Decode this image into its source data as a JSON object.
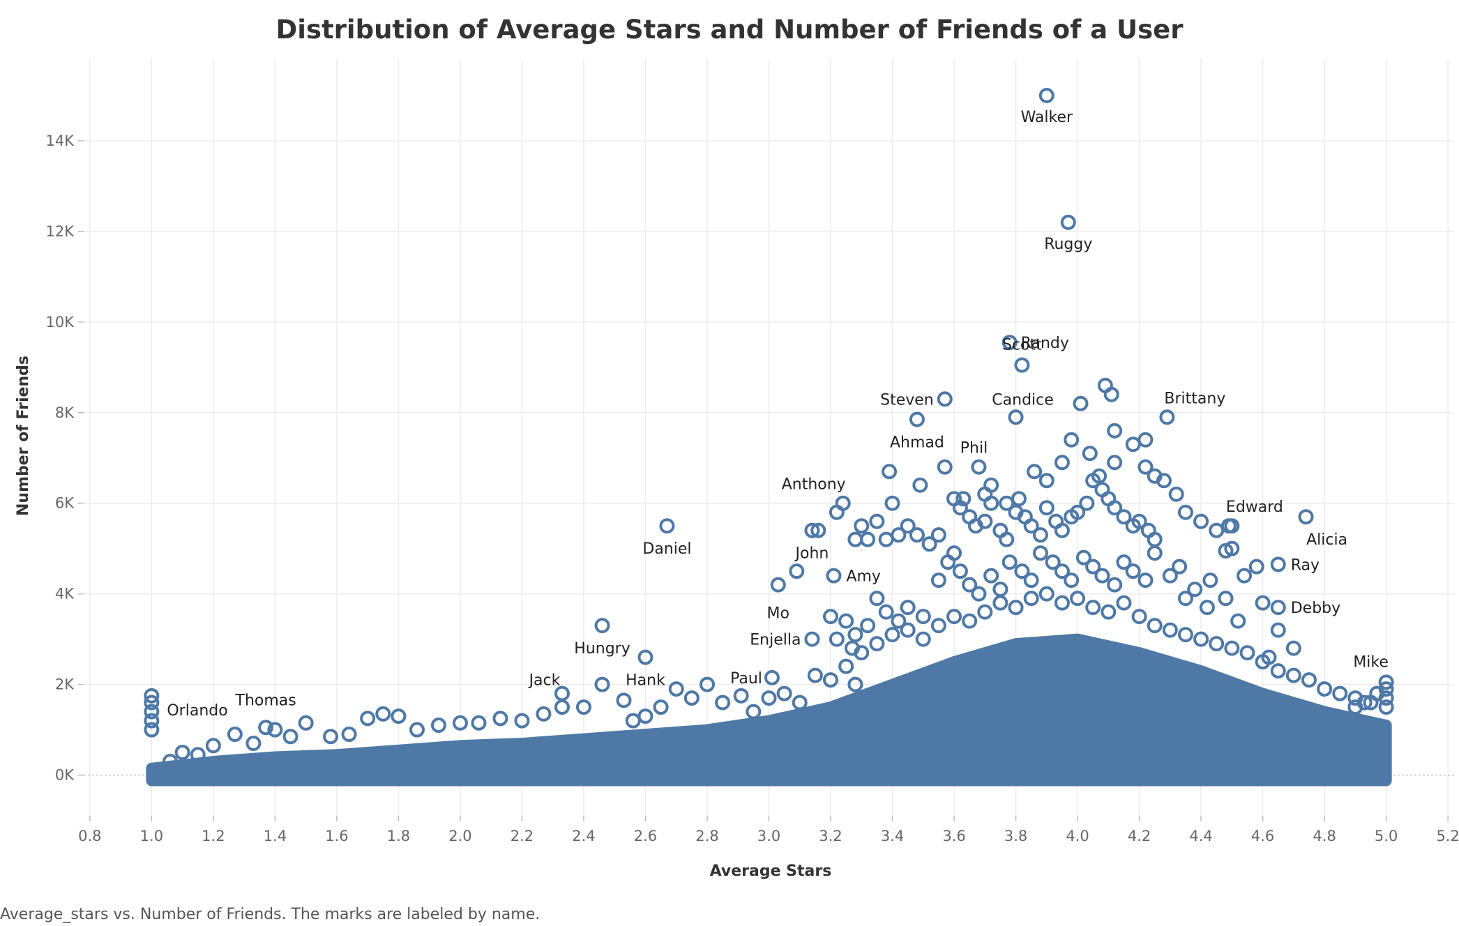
{
  "chart_data": {
    "type": "scatter",
    "title": "Distribution of Average Stars and Number of Friends of a User",
    "xlabel": "Average Stars",
    "ylabel": "Number of Friends",
    "caption": "Average_stars vs. Number of Friends.  The marks are labeled by name.",
    "xlim": [
      0.78,
      5.22
    ],
    "ylim": [
      -900,
      15800
    ],
    "x_ticks": [
      0.8,
      1.0,
      1.2,
      1.4,
      1.6,
      1.8,
      2.0,
      2.2,
      2.4,
      2.6,
      2.8,
      3.0,
      3.2,
      3.4,
      3.6,
      3.8,
      4.0,
      4.2,
      4.4,
      4.6,
      4.8,
      5.0,
      5.2
    ],
    "x_tick_labels": [
      "0.8",
      "1.0",
      "1.2",
      "1.4",
      "1.6",
      "1.8",
      "2.0",
      "2.2",
      "2.4",
      "2.6",
      "2.8",
      "3.0",
      "3.2",
      "3.4",
      "3.6",
      "3.8",
      "4.0",
      "4.2",
      "4.4",
      "4.6",
      "4.8",
      "5.0",
      "5.2"
    ],
    "y_ticks": [
      0,
      2000,
      4000,
      6000,
      8000,
      10000,
      12000,
      14000
    ],
    "y_tick_labels": [
      "0K",
      "2K",
      "4K",
      "6K",
      "8K",
      "10K",
      "12K",
      "14K"
    ],
    "grid": true,
    "mark_color": "#4e79a7",
    "labeled_points": [
      {
        "name": "Walker",
        "x": 3.9,
        "y": 15000
      },
      {
        "name": "Ruggy",
        "x": 3.97,
        "y": 12200
      },
      {
        "name": "Randy",
        "x": 3.78,
        "y": 9550
      },
      {
        "name": "Scott",
        "x": 3.82,
        "y": 9050
      },
      {
        "name": "Steven",
        "x": 3.57,
        "y": 8300
      },
      {
        "name": "Candice",
        "x": 3.8,
        "y": 7900
      },
      {
        "name": "Ahmad",
        "x": 3.48,
        "y": 7850
      },
      {
        "name": "Phil",
        "x": 3.57,
        "y": 6800
      },
      {
        "name": "Brittany",
        "x": 4.29,
        "y": 7900
      },
      {
        "name": "Anthony",
        "x": 3.24,
        "y": 6000
      },
      {
        "name": "Edward",
        "x": 4.49,
        "y": 5500
      },
      {
        "name": "Daniel",
        "x": 2.67,
        "y": 5500
      },
      {
        "name": "Alicia",
        "x": 4.74,
        "y": 5700
      },
      {
        "name": "John",
        "x": 3.14,
        "y": 5400
      },
      {
        "name": "Ray",
        "x": 4.65,
        "y": 4650
      },
      {
        "name": "Amy",
        "x": 3.21,
        "y": 4400
      },
      {
        "name": "Mo",
        "x": 3.03,
        "y": 4200
      },
      {
        "name": "Debby",
        "x": 4.65,
        "y": 3700
      },
      {
        "name": "Hungry",
        "x": 2.46,
        "y": 3300
      },
      {
        "name": "Enjella",
        "x": 3.14,
        "y": 3000
      },
      {
        "name": "Hank",
        "x": 2.6,
        "y": 2600
      },
      {
        "name": "Paul",
        "x": 3.01,
        "y": 2150
      },
      {
        "name": "Mike",
        "x": 5.0,
        "y": 2050
      },
      {
        "name": "Jack",
        "x": 2.33,
        "y": 1800
      },
      {
        "name": "Thomas",
        "x": 1.37,
        "y": 1050
      },
      {
        "name": "Orlando",
        "x": 1.0,
        "y": 1750
      }
    ],
    "scattered_points": [
      [
        3.6,
        6100
      ],
      [
        3.62,
        5900
      ],
      [
        3.65,
        5700
      ],
      [
        3.67,
        5500
      ],
      [
        3.7,
        5600
      ],
      [
        3.72,
        6000
      ],
      [
        3.75,
        5400
      ],
      [
        3.77,
        5200
      ],
      [
        3.8,
        5800
      ],
      [
        3.83,
        5700
      ],
      [
        3.85,
        5500
      ],
      [
        3.88,
        5300
      ],
      [
        3.9,
        5900
      ],
      [
        3.93,
        5600
      ],
      [
        3.95,
        5400
      ],
      [
        3.98,
        5700
      ],
      [
        4.0,
        5800
      ],
      [
        4.03,
        6000
      ],
      [
        4.05,
        6500
      ],
      [
        4.08,
        6300
      ],
      [
        4.1,
        6100
      ],
      [
        4.12,
        5900
      ],
      [
        4.15,
        5700
      ],
      [
        4.18,
        5500
      ],
      [
        4.2,
        5600
      ],
      [
        4.23,
        5400
      ],
      [
        4.25,
        5200
      ],
      [
        3.55,
        5300
      ],
      [
        3.52,
        5100
      ],
      [
        3.48,
        5300
      ],
      [
        3.45,
        5500
      ],
      [
        3.4,
        6000
      ],
      [
        3.42,
        5300
      ],
      [
        3.38,
        5200
      ],
      [
        3.35,
        5600
      ],
      [
        3.3,
        5500
      ],
      [
        3.28,
        5200
      ],
      [
        3.22,
        5800
      ],
      [
        3.16,
        5400
      ],
      [
        3.09,
        4500
      ],
      [
        3.32,
        5200
      ],
      [
        3.68,
        6800
      ],
      [
        3.72,
        6400
      ],
      [
        3.86,
        6700
      ],
      [
        3.9,
        6500
      ],
      [
        3.95,
        6900
      ],
      [
        3.98,
        7400
      ],
      [
        4.04,
        7100
      ],
      [
        4.07,
        6600
      ],
      [
        4.12,
        6900
      ],
      [
        4.18,
        7300
      ],
      [
        4.22,
        7400
      ],
      [
        4.25,
        6600
      ],
      [
        3.7,
        6200
      ],
      [
        3.77,
        6000
      ],
      [
        3.39,
        6700
      ],
      [
        3.49,
        6400
      ],
      [
        3.63,
        6100
      ],
      [
        3.81,
        6100
      ],
      [
        4.09,
        8600
      ],
      [
        4.11,
        8400
      ],
      [
        4.01,
        8200
      ],
      [
        4.12,
        7600
      ],
      [
        4.22,
        6800
      ],
      [
        4.28,
        6500
      ],
      [
        4.32,
        6200
      ],
      [
        4.35,
        5800
      ],
      [
        4.4,
        5600
      ],
      [
        4.45,
        5400
      ],
      [
        4.5,
        5500
      ],
      [
        4.48,
        4950
      ],
      [
        4.5,
        5000
      ],
      [
        4.58,
        4600
      ],
      [
        4.54,
        4400
      ],
      [
        4.43,
        4300
      ],
      [
        4.38,
        4100
      ],
      [
        4.35,
        3900
      ],
      [
        4.42,
        3700
      ],
      [
        4.48,
        3900
      ],
      [
        4.52,
        3400
      ],
      [
        4.6,
        3800
      ],
      [
        4.65,
        3200
      ],
      [
        4.7,
        2800
      ],
      [
        4.62,
        2600
      ],
      [
        3.6,
        4900
      ],
      [
        3.58,
        4700
      ],
      [
        3.62,
        4500
      ],
      [
        3.55,
        4300
      ],
      [
        3.65,
        4200
      ],
      [
        3.68,
        4000
      ],
      [
        3.72,
        4400
      ],
      [
        3.75,
        4100
      ],
      [
        3.78,
        4700
      ],
      [
        3.82,
        4500
      ],
      [
        3.85,
        4300
      ],
      [
        3.88,
        4900
      ],
      [
        3.92,
        4700
      ],
      [
        3.95,
        4500
      ],
      [
        3.98,
        4300
      ],
      [
        4.02,
        4800
      ],
      [
        4.05,
        4600
      ],
      [
        4.08,
        4400
      ],
      [
        4.12,
        4200
      ],
      [
        4.15,
        4700
      ],
      [
        4.18,
        4500
      ],
      [
        4.22,
        4300
      ],
      [
        4.25,
        4900
      ],
      [
        4.3,
        4400
      ],
      [
        4.33,
        4600
      ],
      [
        3.35,
        3900
      ],
      [
        3.38,
        3600
      ],
      [
        3.42,
        3400
      ],
      [
        3.45,
        3700
      ],
      [
        3.5,
        3500
      ],
      [
        3.32,
        3300
      ],
      [
        3.28,
        3100
      ],
      [
        3.25,
        3400
      ],
      [
        3.2,
        3500
      ],
      [
        3.22,
        3000
      ],
      [
        3.27,
        2800
      ],
      [
        3.3,
        2700
      ],
      [
        3.35,
        2900
      ],
      [
        3.4,
        3100
      ],
      [
        3.45,
        3200
      ],
      [
        3.5,
        3000
      ],
      [
        3.55,
        3300
      ],
      [
        3.6,
        3500
      ],
      [
        3.65,
        3400
      ],
      [
        3.7,
        3600
      ],
      [
        3.75,
        3800
      ],
      [
        3.8,
        3700
      ],
      [
        3.85,
        3900
      ],
      [
        3.9,
        4000
      ],
      [
        3.95,
        3800
      ],
      [
        4.0,
        3900
      ],
      [
        4.05,
        3700
      ],
      [
        4.1,
        3600
      ],
      [
        4.15,
        3800
      ],
      [
        4.2,
        3500
      ],
      [
        4.25,
        3300
      ],
      [
        4.3,
        3200
      ],
      [
        4.35,
        3100
      ],
      [
        4.4,
        3000
      ],
      [
        4.45,
        2900
      ],
      [
        4.5,
        2800
      ],
      [
        4.55,
        2700
      ],
      [
        4.6,
        2500
      ],
      [
        4.65,
        2300
      ],
      [
        4.7,
        2200
      ],
      [
        4.75,
        2100
      ],
      [
        4.8,
        1900
      ],
      [
        4.85,
        1800
      ],
      [
        4.9,
        1700
      ],
      [
        4.95,
        1600
      ],
      [
        2.46,
        2000
      ],
      [
        2.53,
        1650
      ],
      [
        2.4,
        1500
      ],
      [
        2.33,
        1500
      ],
      [
        2.27,
        1350
      ],
      [
        2.2,
        1200
      ],
      [
        2.13,
        1250
      ],
      [
        2.06,
        1150
      ],
      [
        2.0,
        1150
      ],
      [
        1.93,
        1100
      ],
      [
        1.86,
        1000
      ],
      [
        1.8,
        1300
      ],
      [
        1.75,
        1350
      ],
      [
        1.7,
        1250
      ],
      [
        1.64,
        900
      ],
      [
        1.58,
        850
      ],
      [
        1.5,
        1150
      ],
      [
        1.45,
        850
      ],
      [
        1.4,
        1000
      ],
      [
        1.33,
        700
      ],
      [
        1.27,
        900
      ],
      [
        1.2,
        650
      ],
      [
        1.15,
        450
      ],
      [
        1.1,
        500
      ],
      [
        1.06,
        300
      ],
      [
        2.7,
        1900
      ],
      [
        2.75,
        1700
      ],
      [
        2.8,
        2000
      ],
      [
        2.85,
        1600
      ],
      [
        2.91,
        1750
      ],
      [
        2.95,
        1400
      ],
      [
        3.0,
        1700
      ],
      [
        3.05,
        1800
      ],
      [
        3.1,
        1600
      ],
      [
        3.15,
        2200
      ],
      [
        3.2,
        2100
      ],
      [
        3.25,
        2400
      ],
      [
        3.28,
        2000
      ],
      [
        2.65,
        1500
      ],
      [
        2.6,
        1300
      ],
      [
        2.56,
        1200
      ],
      [
        1.0,
        1600
      ],
      [
        1.0,
        1400
      ],
      [
        1.0,
        1200
      ],
      [
        1.0,
        1000
      ],
      [
        5.0,
        1900
      ],
      [
        5.0,
        1700
      ],
      [
        5.0,
        1500
      ],
      [
        4.97,
        1800
      ],
      [
        4.93,
        1600
      ],
      [
        4.9,
        1500
      ]
    ],
    "dense_region": {
      "description_x": [
        1.0,
        5.0
      ],
      "upper_envelope": [
        [
          1.0,
          150
        ],
        [
          1.2,
          300
        ],
        [
          1.4,
          400
        ],
        [
          1.6,
          450
        ],
        [
          1.8,
          550
        ],
        [
          2.0,
          650
        ],
        [
          2.2,
          700
        ],
        [
          2.4,
          800
        ],
        [
          2.6,
          900
        ],
        [
          2.8,
          1000
        ],
        [
          3.0,
          1200
        ],
        [
          3.2,
          1500
        ],
        [
          3.4,
          2000
        ],
        [
          3.6,
          2500
        ],
        [
          3.8,
          2900
        ],
        [
          4.0,
          3000
        ],
        [
          4.2,
          2700
        ],
        [
          4.4,
          2300
        ],
        [
          4.6,
          1800
        ],
        [
          4.8,
          1400
        ],
        [
          5.0,
          1100
        ]
      ]
    }
  }
}
